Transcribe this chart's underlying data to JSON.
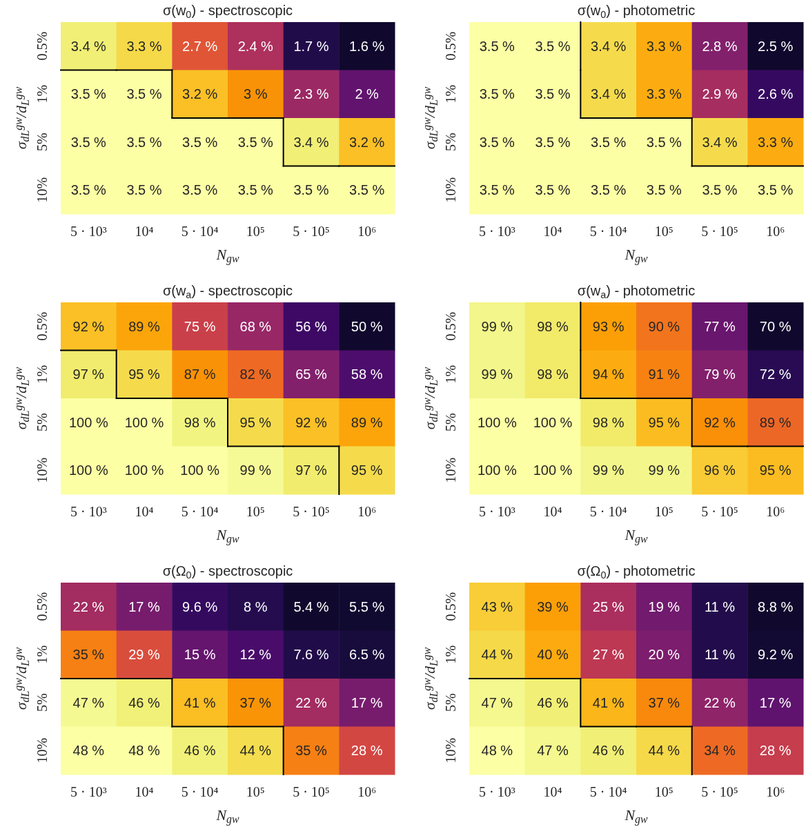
{
  "chart_data": [
    {
      "type": "heatmap",
      "title": "σ(w$_{0}$) - spectroscopic",
      "xlabel": "N$_{gw}$",
      "ylabel": "σ$_{d}$$_{L}$$^{gw}$/d$_{L}$$^{gw}$",
      "categories": [
        "5 · 10³",
        "10⁴",
        "5 · 10⁴",
        "10⁵",
        "5 · 10⁵",
        "10⁶"
      ],
      "y_categories": [
        "0.5%",
        "1%",
        "5%",
        "10%"
      ],
      "cells": [
        [
          3.4,
          3.3,
          2.7,
          2.4,
          1.7,
          1.6
        ],
        [
          3.5,
          3.5,
          3.2,
          3,
          2.3,
          2
        ],
        [
          3.5,
          3.5,
          3.5,
          3.5,
          3.4,
          3.2
        ],
        [
          3.5,
          3.5,
          3.5,
          3.5,
          3.5,
          3.5
        ]
      ],
      "cell_labels": [
        [
          "3.4 %",
          "3.3 %",
          "2.7 %",
          "2.4 %",
          "1.7 %",
          "1.6 %"
        ],
        [
          "3.5 %",
          "3.5 %",
          "3.2 %",
          "3 %",
          "2.3 %",
          "2 %"
        ],
        [
          "3.5 %",
          "3.5 %",
          "3.5 %",
          "3.5 %",
          "3.4 %",
          "3.2 %"
        ],
        [
          "3.5 %",
          "3.5 %",
          "3.5 %",
          "3.5 %",
          "3.5 %",
          "3.5 %"
        ]
      ]
    },
    {
      "type": "heatmap",
      "title": "σ(w$_{0}$) - photometric",
      "xlabel": "N$_{gw}$",
      "ylabel": "σ$_{d}$$_{L}$$^{gw}$/d$_{L}$$^{gw}$",
      "categories": [
        "5 · 10³",
        "10⁴",
        "5 · 10⁴",
        "10⁵",
        "5 · 10⁵",
        "10⁶"
      ],
      "y_categories": [
        "0.5%",
        "1%",
        "5%",
        "10%"
      ],
      "cells": [
        [
          3.5,
          3.5,
          3.4,
          3.3,
          2.8,
          2.5
        ],
        [
          3.5,
          3.5,
          3.4,
          3.3,
          2.9,
          2.6
        ],
        [
          3.5,
          3.5,
          3.5,
          3.5,
          3.4,
          3.3
        ],
        [
          3.5,
          3.5,
          3.5,
          3.5,
          3.5,
          3.5
        ]
      ],
      "cell_labels": [
        [
          "3.5 %",
          "3.5 %",
          "3.4 %",
          "3.3 %",
          "2.8 %",
          "2.5 %"
        ],
        [
          "3.5 %",
          "3.5 %",
          "3.4 %",
          "3.3 %",
          "2.9 %",
          "2.6 %"
        ],
        [
          "3.5 %",
          "3.5 %",
          "3.5 %",
          "3.5 %",
          "3.4 %",
          "3.3 %"
        ],
        [
          "3.5 %",
          "3.5 %",
          "3.5 %",
          "3.5 %",
          "3.5 %",
          "3.5 %"
        ]
      ]
    },
    {
      "type": "heatmap",
      "title": "σ(w$_{a}$) - spectroscopic",
      "xlabel": "N$_{gw}$",
      "ylabel": "σ$_{d}$$_{L}$$^{gw}$/d$_{L}$$^{gw}$",
      "categories": [
        "5 · 10³",
        "10⁴",
        "5 · 10⁴",
        "10⁵",
        "5 · 10⁵",
        "10⁶"
      ],
      "y_categories": [
        "0.5%",
        "1%",
        "5%",
        "10%"
      ],
      "cells": [
        [
          92,
          89,
          75,
          68,
          56,
          50
        ],
        [
          97,
          95,
          87,
          82,
          65,
          58
        ],
        [
          100,
          100,
          98,
          95,
          92,
          89
        ],
        [
          100,
          100,
          100,
          99,
          97,
          95
        ]
      ],
      "cell_labels": [
        [
          "92 %",
          "89 %",
          "75 %",
          "68 %",
          "56 %",
          "50 %"
        ],
        [
          "97 %",
          "95 %",
          "87 %",
          "82 %",
          "65 %",
          "58 %"
        ],
        [
          "100 %",
          "100 %",
          "98 %",
          "95 %",
          "92 %",
          "89 %"
        ],
        [
          "100 %",
          "100 %",
          "100 %",
          "99 %",
          "97 %",
          "95 %"
        ]
      ]
    },
    {
      "type": "heatmap",
      "title": "σ(w$_{a}$) - photometric",
      "xlabel": "N$_{gw}$",
      "ylabel": "σ$_{d}$$_{L}$$^{gw}$/d$_{L}$$^{gw}$",
      "categories": [
        "5 · 10³",
        "10⁴",
        "5 · 10⁴",
        "10⁵",
        "5 · 10⁵",
        "10⁶"
      ],
      "y_categories": [
        "0.5%",
        "1%",
        "5%",
        "10%"
      ],
      "cells": [
        [
          99,
          98,
          93,
          90,
          77,
          70
        ],
        [
          99,
          98,
          94,
          91,
          79,
          72
        ],
        [
          100,
          100,
          98,
          95,
          92,
          89
        ],
        [
          100,
          100,
          99,
          99,
          96,
          95
        ]
      ],
      "cell_labels": [
        [
          "99 %",
          "98 %",
          "93 %",
          "90 %",
          "77 %",
          "70 %"
        ],
        [
          "99 %",
          "98 %",
          "94 %",
          "91 %",
          "79 %",
          "72 %"
        ],
        [
          "100 %",
          "100 %",
          "98 %",
          "95 %",
          "92 %",
          "89 %"
        ],
        [
          "100 %",
          "100 %",
          "99 %",
          "99 %",
          "96 %",
          "95 %"
        ]
      ]
    },
    {
      "type": "heatmap",
      "title": "σ(Ω$_{0}$) - spectroscopic",
      "xlabel": "N$_{gw}$",
      "ylabel": "σ$_{d}$$_{L}$$^{gw}$/d$_{L}$$^{gw}$",
      "categories": [
        "5 · 10³",
        "10⁴",
        "5 · 10⁴",
        "10⁵",
        "5 · 10⁵",
        "10⁶"
      ],
      "y_categories": [
        "0.5%",
        "1%",
        "5%",
        "10%"
      ],
      "cells": [
        [
          22,
          17,
          9.6,
          8,
          5.4,
          5.5
        ],
        [
          35,
          29,
          15,
          12,
          7.6,
          6.5
        ],
        [
          47,
          46,
          41,
          37,
          22,
          17
        ],
        [
          48,
          48,
          46,
          44,
          35,
          28
        ]
      ],
      "cell_labels": [
        [
          "22 %",
          "17 %",
          "9.6 %",
          "8 %",
          "5.4 %",
          "5.5 %"
        ],
        [
          "35 %",
          "29 %",
          "15 %",
          "12 %",
          "7.6 %",
          "6.5 %"
        ],
        [
          "47 %",
          "46 %",
          "41 %",
          "37 %",
          "22 %",
          "17 %"
        ],
        [
          "48 %",
          "48 %",
          "46 %",
          "44 %",
          "35 %",
          "28 %"
        ]
      ]
    },
    {
      "type": "heatmap",
      "title": "σ(Ω$_{0}$) - photometric",
      "xlabel": "N$_{gw}$",
      "ylabel": "σ$_{d}$$_{L}$$^{gw}$/d$_{L}$$^{gw}$",
      "categories": [
        "5 · 10³",
        "10⁴",
        "5 · 10⁴",
        "10⁵",
        "5 · 10⁵",
        "10⁶"
      ],
      "y_categories": [
        "0.5%",
        "1%",
        "5%",
        "10%"
      ],
      "cells": [
        [
          43,
          39,
          25,
          19,
          11,
          8.8
        ],
        [
          44,
          40,
          27,
          20,
          11,
          9.2
        ],
        [
          47,
          46,
          41,
          37,
          22,
          17
        ],
        [
          48,
          47,
          46,
          44,
          34,
          28
        ]
      ],
      "cell_labels": [
        [
          "43 %",
          "39 %",
          "25 %",
          "19 %",
          "11 %",
          "8.8 %"
        ],
        [
          "44 %",
          "40 %",
          "27 %",
          "20 %",
          "11 %",
          "9.2 %"
        ],
        [
          "47 %",
          "46 %",
          "41 %",
          "37 %",
          "22 %",
          "17 %"
        ],
        [
          "48 %",
          "47 %",
          "46 %",
          "44 %",
          "34 %",
          "28 %"
        ]
      ]
    }
  ]
}
